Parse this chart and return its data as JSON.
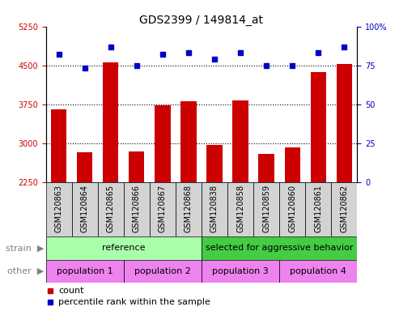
{
  "title": "GDS2399 / 149814_at",
  "samples": [
    "GSM120863",
    "GSM120864",
    "GSM120865",
    "GSM120866",
    "GSM120867",
    "GSM120868",
    "GSM120838",
    "GSM120858",
    "GSM120859",
    "GSM120860",
    "GSM120861",
    "GSM120862"
  ],
  "counts": [
    3650,
    2830,
    4560,
    2840,
    3730,
    3800,
    2960,
    3820,
    2790,
    2920,
    4370,
    4530
  ],
  "percentiles": [
    82,
    73,
    87,
    75,
    82,
    83,
    79,
    83,
    75,
    75,
    83,
    87
  ],
  "ylim_left": [
    2250,
    5250
  ],
  "ylim_right": [
    0,
    100
  ],
  "yticks_left": [
    2250,
    3000,
    3750,
    4500,
    5250
  ],
  "yticks_right": [
    0,
    25,
    50,
    75,
    100
  ],
  "ytick_labels_right": [
    "0",
    "25",
    "50",
    "75",
    "100%"
  ],
  "bar_color": "#cc0000",
  "dot_color": "#0000cc",
  "bg_color": "#ffffff",
  "plot_bg": "#ffffff",
  "xtick_bg": "#d3d3d3",
  "strain_color_ref": "#90ee90",
  "strain_color_sel": "#00cc00",
  "other_color": "#ee82ee",
  "tick_label_color_left": "#cc0000",
  "tick_label_color_right": "#0000cc",
  "title_fontsize": 10,
  "tick_fontsize": 7,
  "label_fontsize": 8,
  "annot_fontsize": 8,
  "strain_groups": [
    {
      "label": "reference",
      "start": 0,
      "end": 6,
      "color": "#aaffaa"
    },
    {
      "label": "selected for aggressive behavior",
      "start": 6,
      "end": 12,
      "color": "#44cc44"
    }
  ],
  "other_groups": [
    {
      "label": "population 1",
      "start": 0,
      "end": 3
    },
    {
      "label": "population 2",
      "start": 3,
      "end": 6
    },
    {
      "label": "population 3",
      "start": 6,
      "end": 9
    },
    {
      "label": "population 4",
      "start": 9,
      "end": 12
    }
  ]
}
